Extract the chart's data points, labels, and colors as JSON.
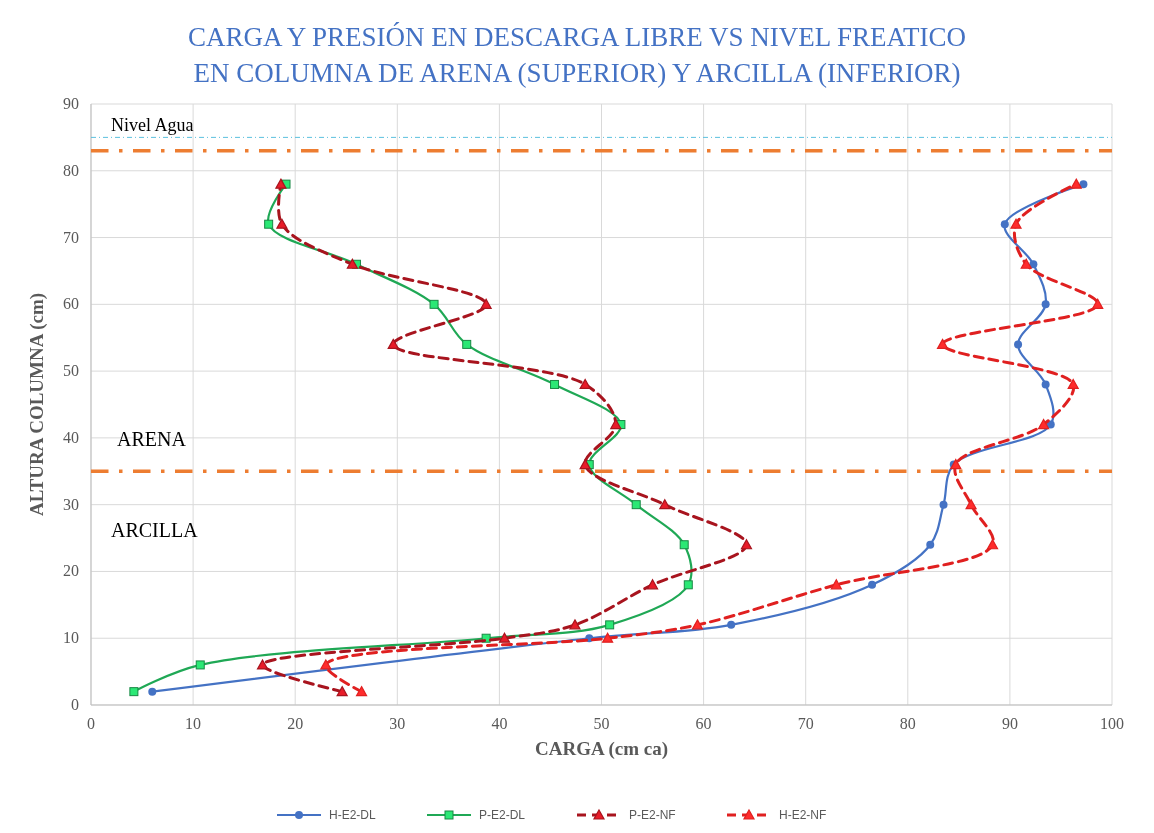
{
  "chart_data": {
    "type": "line",
    "title": "CARGA Y PRESIÓN EN DESCARGA LIBRE VS NIVEL FREATICO\nEN COLUMNA DE ARENA (SUPERIOR) Y ARCILLA (INFERIOR)",
    "xlabel": "CARGA (cm ca)",
    "ylabel": "ALTURA COLUMNA (cm)",
    "xlim": [
      0,
      100
    ],
    "xticks": [
      0,
      10,
      20,
      30,
      40,
      50,
      60,
      70,
      80,
      90,
      100
    ],
    "ylim": [
      0,
      90
    ],
    "yticks": [
      0,
      10,
      20,
      30,
      40,
      50,
      60,
      70,
      80,
      90
    ],
    "grid": true,
    "legend": "bottom",
    "series": [
      {
        "name": "H-E2-DL",
        "color": "#4472c4",
        "marker": "circle",
        "line_style": "solid",
        "x": [
          6,
          48.8,
          62.7,
          76.5,
          82.2,
          83.5,
          84.5,
          94,
          93.5,
          90.8,
          93.5,
          92.3,
          89.5,
          97.2
        ],
        "values": [
          2,
          10,
          12,
          18,
          24,
          30,
          36,
          42,
          48,
          54,
          60,
          66,
          72,
          78
        ]
      },
      {
        "name": "P-E2-DL",
        "color": "#1fa855",
        "marker": "square",
        "line_style": "solid",
        "x": [
          4.2,
          10.7,
          38.7,
          50.8,
          58.5,
          58.1,
          53.4,
          48.8,
          51.9,
          45.4,
          36.8,
          33.6,
          26,
          17.4,
          19.1
        ],
        "values": [
          2,
          6,
          10,
          12,
          18,
          24,
          30,
          36,
          42,
          48,
          54,
          60,
          66,
          72,
          78
        ]
      },
      {
        "name": "P-E2-NF",
        "color": "#a8141e",
        "marker": "triangle",
        "line_style": "dashed",
        "x": [
          24.6,
          16.8,
          40.5,
          47.4,
          55,
          64.2,
          56.2,
          48.4,
          51.4,
          48.4,
          29.6,
          38.7,
          25.6,
          18.7,
          18.6
        ],
        "values": [
          2,
          6,
          10,
          12,
          18,
          24,
          30,
          36,
          42,
          48,
          54,
          60,
          66,
          72,
          78
        ]
      },
      {
        "name": "H-E2-NF",
        "color": "#e02020",
        "marker": "triangle",
        "line_style": "dashed",
        "x": [
          26.5,
          23,
          50.6,
          59.4,
          73,
          88.3,
          86.2,
          84.7,
          93.3,
          96.2,
          83.4,
          98.6,
          91.6,
          90.6,
          96.5
        ],
        "values": [
          2,
          6,
          10,
          12,
          18,
          24,
          30,
          36,
          42,
          48,
          54,
          60,
          66,
          72,
          78
        ]
      }
    ],
    "ref_lines": [
      {
        "axis": "y",
        "value": 85,
        "label": "Nivel Agua",
        "color": "#5bc0de",
        "line_style": "dashed"
      },
      {
        "axis": "y",
        "value": 83,
        "label": null,
        "color": "#ed7d31",
        "line_style": "dashed"
      },
      {
        "axis": "y",
        "value": 35,
        "label": null,
        "color": "#ed7d31",
        "line_style": "dashed"
      }
    ],
    "annotations": [
      "ARENA",
      "ARCILLA"
    ]
  }
}
